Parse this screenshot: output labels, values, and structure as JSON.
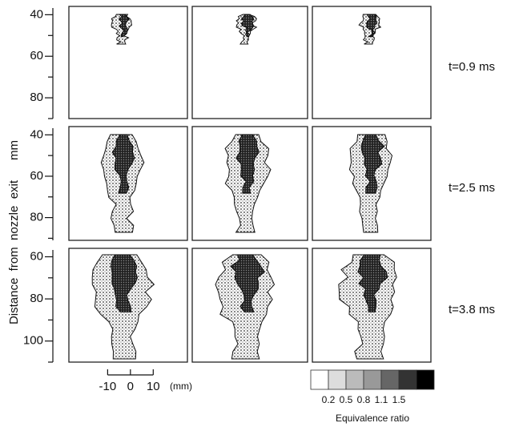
{
  "figure": {
    "y_axis_title": "Distance  from  nozzle  exit      mm",
    "rows": [
      {
        "label": "t=0.9 ms",
        "ylim": [
          36,
          90
        ],
        "yticks": [
          40,
          60,
          80
        ],
        "minor_yticks": [
          50,
          70,
          90
        ]
      },
      {
        "label": "t=2.5 ms",
        "ylim": [
          36,
          91
        ],
        "yticks": [
          40,
          60,
          80
        ],
        "minor_yticks": [
          50,
          70,
          90
        ]
      },
      {
        "label": "t=3.8 ms",
        "ylim": [
          56,
          110
        ],
        "yticks": [
          60,
          80,
          100
        ],
        "minor_yticks": [
          70,
          90,
          110
        ]
      }
    ],
    "x_scale": {
      "xlim": [
        -27,
        25
      ],
      "ticks": [
        -10,
        0,
        10
      ],
      "unit": "(mm)"
    },
    "colorbar": {
      "title": "Equivalence ratio",
      "ticks": [
        0.2,
        0.5,
        0.8,
        1.1,
        1.5
      ]
    }
  }
}
